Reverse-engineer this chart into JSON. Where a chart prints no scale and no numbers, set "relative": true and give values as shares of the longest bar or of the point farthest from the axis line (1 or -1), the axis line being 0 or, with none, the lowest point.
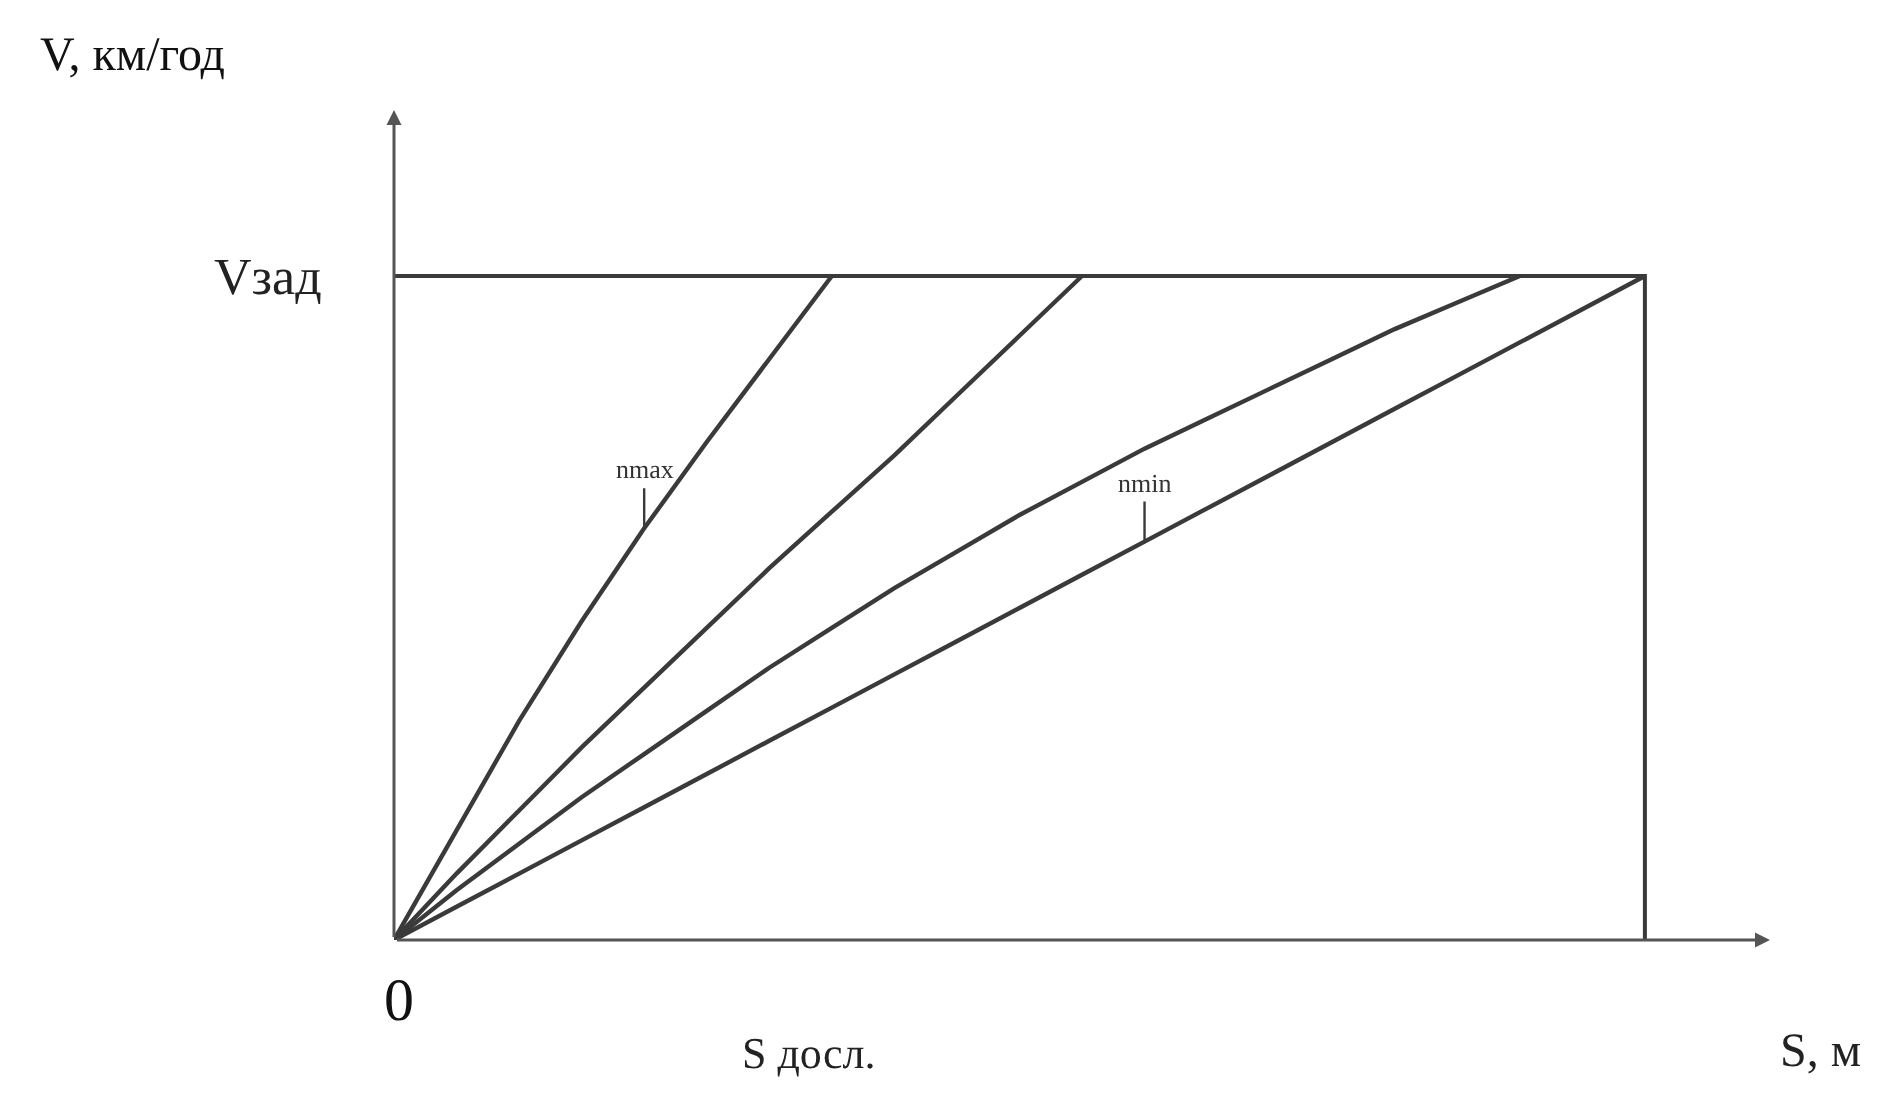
{
  "chart_data": {
    "type": "line",
    "relative": true,
    "xlabel": "S, м",
    "categories": [
      null,
      null,
      null,
      null,
      null,
      null,
      null,
      null,
      null,
      null,
      null,
      null,
      null,
      null,
      null,
      null,
      null,
      null,
      null,
      null,
      null
    ],
    "series": [
      {
        "name": "nmax",
        "color": "#3a3a3a",
        "values": [
          0,
          0.165,
          0.33,
          0.48,
          0.62,
          0.75,
          0.875,
          1,
          null,
          null,
          null,
          null,
          null,
          null,
          null,
          null,
          null,
          null,
          null,
          null,
          null
        ]
      },
      {
        "color": "#3a3a3a",
        "values": [
          0,
          0.1,
          0.195,
          0.29,
          0.38,
          0.47,
          0.56,
          0.645,
          0.73,
          0.82,
          0.91,
          1,
          null,
          null,
          null,
          null,
          null,
          null,
          null,
          null,
          null
        ]
      },
      {
        "color": "#3a3a3a",
        "values": [
          0,
          0.075,
          0.145,
          0.215,
          0.28,
          0.345,
          0.41,
          0.47,
          0.53,
          0.585,
          0.64,
          0.69,
          0.74,
          0.785,
          0.83,
          0.875,
          0.92,
          0.96,
          1,
          null,
          null
        ]
      },
      {
        "name": "nmin",
        "color": "#3a3a3a",
        "values": [
          0,
          0.05,
          0.1,
          0.15,
          0.2,
          0.25,
          0.3,
          0.35,
          0.4,
          0.45,
          0.5,
          0.55,
          0.6,
          0.65,
          0.7,
          0.75,
          0.8,
          0.85,
          0.9,
          0.95,
          1
        ]
      }
    ],
    "ref_lines": [
      {
        "axis": "y",
        "value": 1,
        "label": "Vзад",
        "color": "#3a3a3a"
      }
    ],
    "annotations": [
      "0",
      "S досл.",
      "V, км/год"
    ],
    "legend": false,
    "marker": "none",
    "line_style": "solid"
  }
}
